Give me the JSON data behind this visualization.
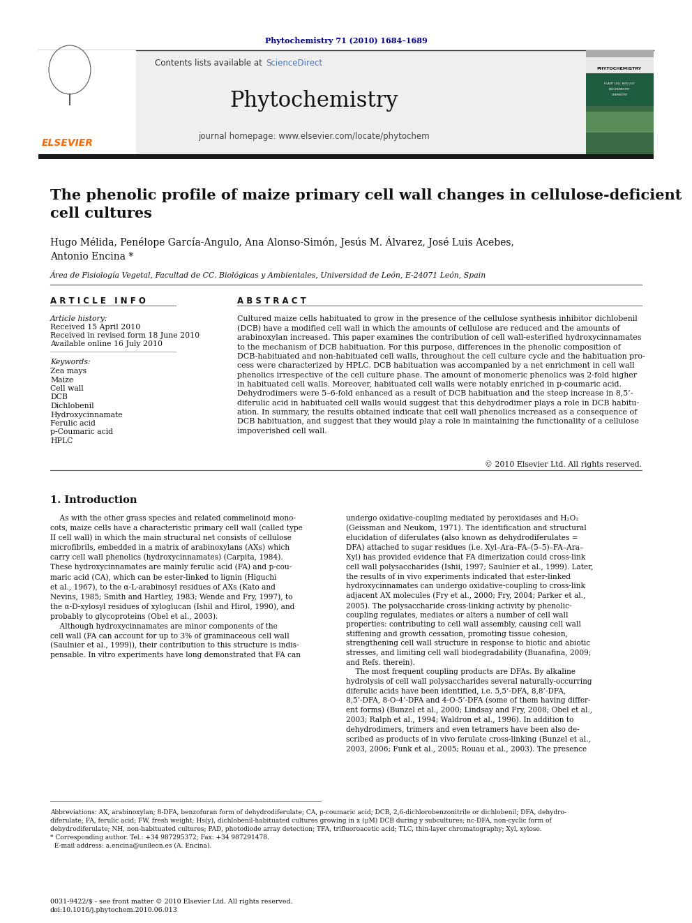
{
  "journal_ref": "Phytochemistry 71 (2010) 1684–1689",
  "journal_ref_color": "#00008B",
  "sciencedirect_color": "#4472C4",
  "journal_name": "Phytochemistry",
  "journal_homepage": "journal homepage: www.elsevier.com/locate/phytochem",
  "elsevier_color": "#FF6600",
  "elsevier_text": "ELSEVIER",
  "article_title": "The phenolic profile of maize primary cell wall changes in cellulose-deficient\ncell cultures",
  "authors": "Hugo Mélida, Penélope García-Angulo, Ana Alonso-Simón, Jesús M. Álvarez, José Luis Acebes,\nAntonio Encina *",
  "affiliation": "Área de Fisiología Vegetal, Facultad de CC. Biológicas y Ambientales, Universidad de León, E-24071 León, Spain",
  "article_info_header": "A R T I C L E   I N F O",
  "abstract_header": "A B S T R A C T",
  "article_history_label": "Article history:",
  "received": "Received 15 April 2010",
  "received_revised": "Received in revised form 18 June 2010",
  "available_online": "Available online 16 July 2010",
  "keywords_label": "Keywords:",
  "keywords": [
    "Zea mays",
    "Maize",
    "Cell wall",
    "DCB",
    "Dichlobenil",
    "Hydroxycinnamate",
    "Ferulic acid",
    "p-Coumaric acid",
    "HPLC"
  ],
  "abstract_text": "Cultured maize cells habituated to grow in the presence of the cellulose synthesis inhibitor dichlobenil\n(DCB) have a modified cell wall in which the amounts of cellulose are reduced and the amounts of\narabinoxylan increased. This paper examines the contribution of cell wall-esterified hydroxycinnamates\nto the mechanism of DCB habituation. For this purpose, differences in the phenolic composition of\nDCB-habituated and non-habituated cell walls, throughout the cell culture cycle and the habituation pro-\ncess were characterized by HPLC. DCB habituation was accompanied by a net enrichment in cell wall\nphenolics irrespective of the cell culture phase. The amount of monomeric phenolics was 2-fold higher\nin habituated cell walls. Moreover, habituated cell walls were notably enriched in p-coumaric acid.\nDehydrodimers were 5–6-fold enhanced as a result of DCB habituation and the steep increase in 8,5’-\ndiferulic acid in habituated cell walls would suggest that this dehydrodimer plays a role in DCB habitu-\nation. In summary, the results obtained indicate that cell wall phenolics increased as a consequence of\nDCB habituation, and suggest that they would play a role in maintaining the functionality of a cellulose\nimpoverished cell wall.",
  "copyright": "© 2010 Elsevier Ltd. All rights reserved.",
  "intro_header": "1. Introduction",
  "intro_text_left": "    As with the other grass species and related commelinoid mono-\ncots, maize cells have a characteristic primary cell wall (called type\nII cell wall) in which the main structural net consists of cellulose\nmicrofibrils, embedded in a matrix of arabinoxylans (AXs) which\ncarry cell wall phenolics (hydroxycinnamates) (Carpita, 1984).\nThese hydroxycinnamates are mainly ferulic acid (FA) and p-cou-\nmaric acid (CA), which can be ester-linked to lignin (Higuchi\net al., 1967), to the α-L-arabinosyl residues of AXs (Kato and\nNevins, 1985; Smith and Hartley, 1983; Wende and Fry, 1997), to\nthe α-D-xylosyl residues of xyloglucan (Ishil and Hirol, 1990), and\nprobably to glycoproteins (Obel et al., 2003).\n    Although hydroxycinnamates are minor components of the\ncell wall (FA can account for up to 3% of graminaceous cell wall\n(Saulnier et al., 1999)), their contribution to this structure is indis-\npensable. In vitro experiments have long demonstrated that FA can",
  "intro_text_right": "undergo oxidative-coupling mediated by peroxidases and H₂O₂\n(Geissman and Neukom, 1971). The identification and structural\nelucidation of diferulates (also known as dehydrodiferulates =\nDFA) attached to sugar residues (i.e. Xyl–Ara–FA–(5–5)–FA–Ara–\nXyl) has provided evidence that FA dimerization could cross-link\ncell wall polysaccharides (Ishii, 1997; Saulnier et al., 1999). Later,\nthe results of in vivo experiments indicated that ester-linked\nhydroxycinnamates can undergo oxidative-coupling to cross-link\nadjacent AX molecules (Fry et al., 2000; Fry, 2004; Parker et al.,\n2005). The polysaccharide cross-linking activity by phenolic-\ncoupling regulates, mediates or alters a number of cell wall\nproperties: contributing to cell wall assembly, causing cell wall\nstiffening and growth cessation, promoting tissue cohesion,\nstrengthening cell wall structure in response to biotic and abiotic\nstresses, and limiting cell wall biodegradability (Buanafina, 2009;\nand Refs. therein).\n    The most frequent coupling products are DFAs. By alkaline\nhydrolysis of cell wall polysaccharides several naturally-occurring\ndiferulic acids have been identified, i.e. 5,5’-DFA, 8,8’-DFA,\n8,5’-DFA, 8-O-4’-DFA and 4-O-5’-DFA (some of them having differ-\nent forms) (Bunzel et al., 2000; Lindsay and Fry, 2008; Obel et al.,\n2003; Ralph et al., 1994; Waldron et al., 1996). In addition to\ndehydrodimers, trimers and even tetramers have been also de-\nscribed as products of in vivo ferulate cross-linking (Bunzel et al.,\n2003, 2006; Funk et al., 2005; Rouau et al., 2003). The presence",
  "footnote_text": "Abbreviations: AX, arabinoxylan; 8-DFA, benzofuran form of dehydrodiferulate; CA, p-coumaric acid; DCB, 2,6-dichlorobenzonitrile or dichlobenil; DFA, dehydro-\ndiferulate; FA, ferulic acid; FW, fresh weight; Hs(y), dichlobenil-habituated cultures growing in x (μM) DCB during y subcultures; nc-DFA, non-cyclic form of\ndehydrodiferulate; NH, non-habituated cultures; PAD, photodiode array detection; TFA, trifluoroacetic acid; TLC, thin-layer chromatography; Xyl, xylose.\n* Corresponding author. Tel.: +34 987295372; Fax: +34 987291478.\n  E-mail address: a.encina@unileon.es (A. Encina).",
  "issn_text": "0031-9422/$ - see front matter © 2010 Elsevier Ltd. All rights reserved.",
  "doi_text": "doi:10.1016/j.phytochem.2010.06.013",
  "background_color": "#FFFFFF",
  "header_bg_color": "#EFEFEF",
  "black_bar_color": "#1A1A1A",
  "link_color": "#4472C4"
}
